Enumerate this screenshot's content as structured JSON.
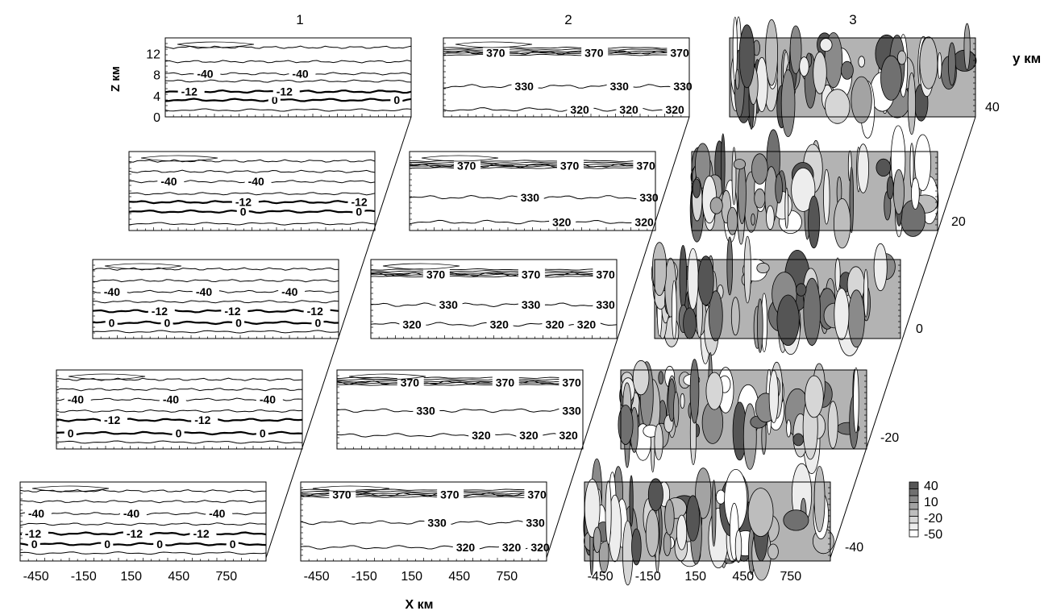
{
  "column_labels": [
    "1",
    "2",
    "3"
  ],
  "chart_data": {
    "type": "contour",
    "x": {
      "label": "X км",
      "ticks": [
        "-450",
        "-150",
        "150",
        "450",
        "750"
      ],
      "tick_values": [
        -450,
        -150,
        150,
        450,
        750
      ],
      "range": [
        -550,
        1000
      ]
    },
    "z": {
      "label": "Z км",
      "ticks": [
        "0",
        "4",
        "8",
        "12"
      ],
      "tick_values": [
        0,
        4,
        8,
        12
      ],
      "range": [
        0,
        15
      ]
    },
    "y": {
      "label": "y км",
      "ticks": [
        "40",
        "20",
        "0",
        "-20",
        "-40"
      ],
      "tick_values": [
        40,
        20,
        0,
        -20,
        -40
      ]
    },
    "colorbar": {
      "ticks": [
        "40",
        "10",
        "-20",
        "-50"
      ],
      "tick_values": [
        40,
        10,
        -20,
        -50
      ],
      "colors": [
        "#555555",
        "#707070",
        "#8a8a8a",
        "#a3a3a3",
        "#bdbdbd",
        "#d6d6d6",
        "#ededed",
        "#ffffff"
      ]
    },
    "panels": [
      {
        "y": 40,
        "temperature_levels": [
          {
            "z": 1.3,
            "label": "",
            "label_x": []
          },
          {
            "z": 3.2,
            "label": "0",
            "label_x": [
              120,
              890
            ]
          },
          {
            "z": 4.8,
            "label": "-12",
            "label_x": [
              -450,
              150
            ]
          },
          {
            "z": 6.8,
            "label": "",
            "label_x": []
          },
          {
            "z": 8.2,
            "label": "-40",
            "label_x": [
              -350,
              250
            ]
          },
          {
            "z": 10.5,
            "label": "",
            "label_x": []
          },
          {
            "z": 13.2,
            "label": "",
            "label_x": []
          }
        ],
        "theta_levels": [
          {
            "z": 1.4,
            "label": "320",
            "label_x": [
              250,
              560,
              850
            ]
          },
          {
            "z": 5.8,
            "label": "330",
            "label_x": [
              -100,
              500,
              900
            ]
          },
          {
            "z": 12.2,
            "label": "370",
            "label_x": [
              -280,
              340,
              880
            ]
          }
        ]
      },
      {
        "y": 20,
        "temperature_levels": [
          {
            "z": 1.3,
            "label": "",
            "label_x": []
          },
          {
            "z": 3.6,
            "label": "0",
            "label_x": [
              150,
              880
            ]
          },
          {
            "z": 5.4,
            "label": "-12",
            "label_x": [
              120,
              850
            ]
          },
          {
            "z": 7.0,
            "label": "",
            "label_x": []
          },
          {
            "z": 9.3,
            "label": "-40",
            "label_x": [
              -350,
              200
            ]
          },
          {
            "z": 11.2,
            "label": "",
            "label_x": []
          },
          {
            "z": 13.2,
            "label": "",
            "label_x": []
          }
        ],
        "theta_levels": [
          {
            "z": 1.6,
            "label": "320",
            "label_x": [
              350,
              870
            ]
          },
          {
            "z": 6.3,
            "label": "330",
            "label_x": [
              150,
              900
            ]
          },
          {
            "z": 12.3,
            "label": "370",
            "label_x": [
              -250,
              400,
              880
            ]
          }
        ]
      },
      {
        "y": 0,
        "temperature_levels": [
          {
            "z": 1.3,
            "label": "",
            "label_x": []
          },
          {
            "z": 3.0,
            "label": "0",
            "label_x": [
              -450,
              -100,
              350,
              850
            ]
          },
          {
            "z": 5.2,
            "label": "-12",
            "label_x": [
              -180,
              280,
              800
            ]
          },
          {
            "z": 7.0,
            "label": "",
            "label_x": []
          },
          {
            "z": 8.9,
            "label": "-40",
            "label_x": [
              -480,
              100,
              640
            ]
          },
          {
            "z": 11.0,
            "label": "",
            "label_x": []
          },
          {
            "z": 13.2,
            "label": "",
            "label_x": []
          }
        ],
        "theta_levels": [
          {
            "z": 2.7,
            "label": "320",
            "label_x": [
              -350,
              200,
              550,
              750
            ]
          },
          {
            "z": 6.4,
            "label": "330",
            "label_x": [
              -120,
              400,
              870
            ]
          },
          {
            "z": 12.2,
            "label": "370",
            "label_x": [
              -200,
              400,
              870
            ]
          }
        ]
      },
      {
        "y": -20,
        "temperature_levels": [
          {
            "z": 1.3,
            "label": "",
            "label_x": []
          },
          {
            "z": 3.0,
            "label": "0",
            "label_x": [
              -480,
              200,
              730
            ]
          },
          {
            "z": 5.5,
            "label": "-12",
            "label_x": [
              -250,
              320
            ]
          },
          {
            "z": 7.2,
            "label": "",
            "label_x": []
          },
          {
            "z": 9.4,
            "label": "-40",
            "label_x": [
              -480,
              120,
              730
            ]
          },
          {
            "z": 11.3,
            "label": "",
            "label_x": []
          },
          {
            "z": 13.2,
            "label": "",
            "label_x": []
          }
        ],
        "theta_levels": [
          {
            "z": 2.6,
            "label": "320",
            "label_x": [
              300,
              600,
              850
            ]
          },
          {
            "z": 7.3,
            "label": "330",
            "label_x": [
              -50,
              870
            ]
          },
          {
            "z": 12.6,
            "label": "370",
            "label_x": [
              -150,
              450,
              870
            ]
          }
        ]
      },
      {
        "y": -40,
        "temperature_levels": [
          {
            "z": 1.5,
            "label": "",
            "label_x": []
          },
          {
            "z": 3.2,
            "label": "0",
            "label_x": [
              -480,
              -20,
              310,
              770
            ]
          },
          {
            "z": 5.2,
            "label": "-12",
            "label_x": [
              -520,
              120,
              540
            ]
          },
          {
            "z": 7.0,
            "label": "",
            "label_x": []
          },
          {
            "z": 9.0,
            "label": "-40",
            "label_x": [
              -500,
              100,
              640
            ]
          },
          {
            "z": 11.3,
            "label": "",
            "label_x": []
          },
          {
            "z": 13.3,
            "label": "",
            "label_x": []
          }
        ],
        "theta_levels": [
          {
            "z": 2.6,
            "label": "320",
            "label_x": [
              430,
              720,
              900
            ]
          },
          {
            "z": 7.3,
            "label": "330",
            "label_x": [
              250,
              870
            ]
          },
          {
            "z": 12.6,
            "label": "370",
            "label_x": [
              -350,
              330,
              880
            ]
          }
        ]
      }
    ]
  }
}
